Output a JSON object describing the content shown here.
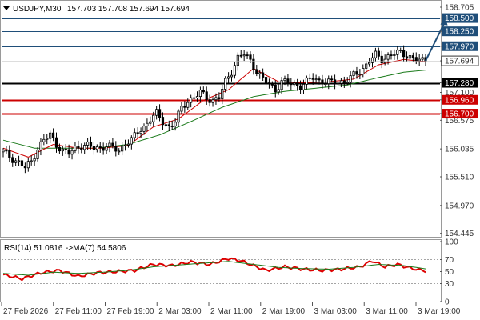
{
  "header": {
    "symbol": "USDJPY,M30",
    "ohlc": "157.703 157.708 157.694 157.694"
  },
  "rsi_header": {
    "label": "RSI(14) 51.0816",
    "ma_label": "->MA(7) 54.5806"
  },
  "colors": {
    "candle": "#000000",
    "ma_fast": "#cc0000",
    "ma_slow": "#1a7a1a",
    "resistance": "#1f4e79",
    "support": "#cc0000",
    "pivot": "#000000",
    "rsi": "#dd0000",
    "rsi_ma": "#1a7a1a",
    "arrow": "#1f4e79"
  },
  "chart_data": [
    {
      "type": "candlestick",
      "title": "USDJPY,M30",
      "x_labels": [
        "27 Feb 2026",
        "27 Feb 11:00",
        "27 Feb 19:00",
        "2 Mar 03:00",
        "2 Mar 11:00",
        "2 Mar 19:00",
        "3 Mar 03:00",
        "3 Mar 11:00",
        "3 Mar 19:00"
      ],
      "y_ticks": [
        "158.705",
        "158.500",
        "158.250",
        "157.970",
        "157.694",
        "157.280",
        "157.100",
        "156.960",
        "156.700",
        "156.575",
        "156.035",
        "155.510",
        "154.970",
        "154.445"
      ],
      "ylim": [
        154.44,
        158.75
      ],
      "last_price": 157.694,
      "levels": [
        {
          "value": 158.5,
          "label": "158.500",
          "kind": "resistance"
        },
        {
          "value": 158.25,
          "label": "158.250",
          "kind": "resistance"
        },
        {
          "value": 157.97,
          "label": "157.970",
          "kind": "resistance"
        },
        {
          "value": 157.28,
          "label": "157.280",
          "kind": "pivot"
        },
        {
          "value": 156.96,
          "label": "156.960",
          "kind": "support"
        },
        {
          "value": 156.7,
          "label": "156.700",
          "kind": "support"
        }
      ],
      "close_points": [
        [
          0,
          155.98
        ],
        [
          3,
          155.85
        ],
        [
          5,
          155.78
        ],
        [
          7,
          155.68
        ],
        [
          9,
          155.8
        ],
        [
          11,
          156.05
        ],
        [
          13,
          156.2
        ],
        [
          15,
          156.3
        ],
        [
          17,
          156.12
        ],
        [
          19,
          156.0
        ],
        [
          21,
          155.95
        ],
        [
          23,
          156.05
        ],
        [
          25,
          156.1
        ],
        [
          27,
          156.1
        ],
        [
          29,
          156.05
        ],
        [
          31,
          156.05
        ],
        [
          33,
          156.1
        ],
        [
          35,
          156.05
        ],
        [
          37,
          156.0
        ],
        [
          39,
          156.15
        ],
        [
          41,
          156.2
        ],
        [
          43,
          156.35
        ],
        [
          45,
          156.45
        ],
        [
          47,
          156.6
        ],
        [
          49,
          156.7
        ],
        [
          51,
          156.55
        ],
        [
          53,
          156.45
        ],
        [
          55,
          156.55
        ],
        [
          57,
          156.8
        ],
        [
          59,
          156.95
        ],
        [
          61,
          157.0
        ],
        [
          63,
          157.1
        ],
        [
          65,
          157.0
        ],
        [
          67,
          156.95
        ],
        [
          69,
          157.0
        ],
        [
          71,
          157.3
        ],
        [
          73,
          157.5
        ],
        [
          75,
          157.75
        ],
        [
          77,
          157.82
        ],
        [
          79,
          157.7
        ],
        [
          81,
          157.5
        ],
        [
          83,
          157.35
        ],
        [
          85,
          157.25
        ],
        [
          87,
          157.15
        ],
        [
          89,
          157.3
        ],
        [
          91,
          157.28
        ],
        [
          93,
          157.25
        ],
        [
          95,
          157.22
        ],
        [
          97,
          157.3
        ],
        [
          99,
          157.38
        ],
        [
          101,
          157.32
        ],
        [
          103,
          157.3
        ],
        [
          105,
          157.28
        ],
        [
          107,
          157.3
        ],
        [
          109,
          157.3
        ],
        [
          111,
          157.38
        ],
        [
          113,
          157.45
        ],
        [
          115,
          157.55
        ],
        [
          117,
          157.7
        ],
        [
          119,
          157.8
        ],
        [
          121,
          157.72
        ],
        [
          123,
          157.78
        ],
        [
          125,
          157.83
        ],
        [
          127,
          157.85
        ],
        [
          129,
          157.8
        ],
        [
          131,
          157.74
        ],
        [
          133,
          157.7
        ],
        [
          135,
          157.694
        ]
      ],
      "ma_fast_points": [
        [
          0,
          156.05
        ],
        [
          8,
          155.88
        ],
        [
          16,
          156.12
        ],
        [
          24,
          156.05
        ],
        [
          32,
          156.05
        ],
        [
          40,
          156.1
        ],
        [
          48,
          156.45
        ],
        [
          56,
          156.6
        ],
        [
          64,
          156.95
        ],
        [
          72,
          157.15
        ],
        [
          80,
          157.55
        ],
        [
          88,
          157.3
        ],
        [
          96,
          157.28
        ],
        [
          104,
          157.3
        ],
        [
          112,
          157.35
        ],
        [
          120,
          157.62
        ],
        [
          128,
          157.72
        ],
        [
          135,
          157.68
        ]
      ],
      "ma_slow_points": [
        [
          0,
          156.2
        ],
        [
          10,
          156.05
        ],
        [
          20,
          156.05
        ],
        [
          30,
          156.05
        ],
        [
          40,
          156.12
        ],
        [
          50,
          156.3
        ],
        [
          60,
          156.55
        ],
        [
          70,
          156.82
        ],
        [
          80,
          157.02
        ],
        [
          90,
          157.12
        ],
        [
          100,
          157.18
        ],
        [
          110,
          157.24
        ],
        [
          120,
          157.38
        ],
        [
          128,
          157.48
        ],
        [
          135,
          157.52
        ]
      ],
      "projection": [
        [
          135,
          157.694
        ],
        [
          140,
          158.5
        ]
      ]
    },
    {
      "type": "line",
      "title": "RSI(14) 51.0816 ->MA(7) 54.5806",
      "y_ticks": [
        "100",
        "70",
        "50",
        "30",
        "0"
      ],
      "ylim": [
        0,
        100
      ],
      "reference_lines": [
        70,
        30
      ],
      "series": [
        {
          "name": "RSI(14)",
          "values": [
            [
              0,
              45
            ],
            [
              6,
              38
            ],
            [
              12,
              48
            ],
            [
              18,
              52
            ],
            [
              24,
              42
            ],
            [
              30,
              48
            ],
            [
              36,
              50
            ],
            [
              42,
              52
            ],
            [
              48,
              62
            ],
            [
              54,
              60
            ],
            [
              60,
              66
            ],
            [
              66,
              62
            ],
            [
              72,
              72
            ],
            [
              76,
              68
            ],
            [
              80,
              60
            ],
            [
              84,
              52
            ],
            [
              90,
              58
            ],
            [
              96,
              54
            ],
            [
              102,
              52
            ],
            [
              108,
              54
            ],
            [
              114,
              58
            ],
            [
              118,
              68
            ],
            [
              122,
              58
            ],
            [
              126,
              62
            ],
            [
              130,
              56
            ],
            [
              135,
              51
            ]
          ]
        },
        {
          "name": "MA(7)",
          "values": [
            [
              0,
              47
            ],
            [
              8,
              44
            ],
            [
              16,
              49
            ],
            [
              24,
              47
            ],
            [
              32,
              49
            ],
            [
              40,
              52
            ],
            [
              48,
              58
            ],
            [
              56,
              61
            ],
            [
              64,
              64
            ],
            [
              72,
              67
            ],
            [
              80,
              62
            ],
            [
              88,
              57
            ],
            [
              96,
              55
            ],
            [
              104,
              54
            ],
            [
              112,
              57
            ],
            [
              120,
              62
            ],
            [
              128,
              60
            ],
            [
              135,
              54.6
            ]
          ]
        }
      ]
    }
  ]
}
